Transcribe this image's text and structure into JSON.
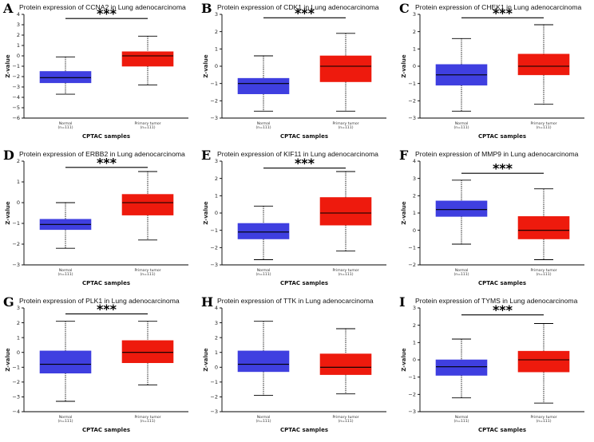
{
  "colors": {
    "normal": "#3f3fe0",
    "tumor": "#ee1a0d"
  },
  "chart_data": [
    {
      "type": "box",
      "letter": "A",
      "title": "Protein expression of CCNA2 in Lung adenocarcinoma",
      "ylabel": "Z-value",
      "xlabel": "CPTAC samples",
      "ylim": [
        -6,
        4
      ],
      "yticks": [
        -6,
        -5,
        -4,
        -3,
        -2,
        -1,
        0,
        1,
        2,
        3,
        4
      ],
      "significance": "***",
      "sig_y": 3.6,
      "groups": [
        {
          "name": "Normal",
          "n": "(n=111)",
          "whisker_low": -3.7,
          "q1": -2.6,
          "median": -2.1,
          "q3": -1.5,
          "whisker_high": -0.1
        },
        {
          "name": "Primary tumor",
          "n": "(n=111)",
          "whisker_low": -2.8,
          "q1": -1.0,
          "median": 0.0,
          "q3": 0.4,
          "whisker_high": 1.9
        }
      ]
    },
    {
      "type": "box",
      "letter": "B",
      "title": "Protein expression of CDK1 in Lung adenocarcinoma",
      "ylabel": "Z-value",
      "xlabel": "CPTAC samples",
      "ylim": [
        -3,
        3
      ],
      "yticks": [
        -3,
        -2,
        -1,
        0,
        1,
        2,
        3
      ],
      "significance": "***",
      "sig_y": 2.8,
      "groups": [
        {
          "name": "Normal",
          "n": "(n=111)",
          "whisker_low": -2.6,
          "q1": -1.6,
          "median": -1.0,
          "q3": -0.7,
          "whisker_high": 0.6
        },
        {
          "name": "Primary tumor",
          "n": "(n=111)",
          "whisker_low": -2.6,
          "q1": -0.9,
          "median": 0.0,
          "q3": 0.6,
          "whisker_high": 1.9
        }
      ]
    },
    {
      "type": "box",
      "letter": "C",
      "title": "Protein expression of CHEK1 in Lung adenocarcinoma",
      "ylabel": "Z-value",
      "xlabel": "CPTAC samples",
      "ylim": [
        -3,
        3
      ],
      "yticks": [
        -3,
        -2,
        -1,
        0,
        1,
        2,
        3
      ],
      "significance": "***",
      "sig_y": 2.8,
      "groups": [
        {
          "name": "Normal",
          "n": "(n=111)",
          "whisker_low": -2.6,
          "q1": -1.1,
          "median": -0.5,
          "q3": 0.1,
          "whisker_high": 1.6
        },
        {
          "name": "Primary tumor",
          "n": "(n=111)",
          "whisker_low": -2.2,
          "q1": -0.5,
          "median": 0.0,
          "q3": 0.7,
          "whisker_high": 2.4
        }
      ]
    },
    {
      "type": "box",
      "letter": "D",
      "title": "Protein expression of ERBB2 in Lung adenocarcinoma",
      "ylabel": "Z-value",
      "xlabel": "CPTAC samples",
      "ylim": [
        -3,
        2
      ],
      "yticks": [
        -3,
        -2,
        -1,
        0,
        1,
        2
      ],
      "significance": "***",
      "sig_y": 1.7,
      "groups": [
        {
          "name": "Normal",
          "n": "(n=111)",
          "whisker_low": -2.2,
          "q1": -1.3,
          "median": -1.05,
          "q3": -0.8,
          "whisker_high": 0.0
        },
        {
          "name": "Primary tumor",
          "n": "(n=111)",
          "whisker_low": -1.8,
          "q1": -0.6,
          "median": 0.0,
          "q3": 0.4,
          "whisker_high": 1.5
        }
      ]
    },
    {
      "type": "box",
      "letter": "E",
      "title": "Protein expression of KIF11 in Lung adenocarcinoma",
      "ylabel": "Z-value",
      "xlabel": "CPTAC samples",
      "ylim": [
        -3,
        3
      ],
      "yticks": [
        -3,
        -2,
        -1,
        0,
        1,
        2,
        3
      ],
      "significance": "***",
      "sig_y": 2.6,
      "groups": [
        {
          "name": "Normal",
          "n": "(n=111)",
          "whisker_low": -2.7,
          "q1": -1.5,
          "median": -1.1,
          "q3": -0.6,
          "whisker_high": 0.4
        },
        {
          "name": "Primary tumor",
          "n": "(n=111)",
          "whisker_low": -2.2,
          "q1": -0.7,
          "median": 0.0,
          "q3": 0.9,
          "whisker_high": 2.4
        }
      ]
    },
    {
      "type": "box",
      "letter": "F",
      "title": "Protein expression of MMP9 in Lung adenocarcinoma",
      "ylabel": "Z-value",
      "xlabel": "CPTAC samples",
      "ylim": [
        -2,
        4
      ],
      "yticks": [
        -2,
        -1,
        0,
        1,
        2,
        3,
        4
      ],
      "significance": "***",
      "sig_y": 3.3,
      "groups": [
        {
          "name": "Normal",
          "n": "(n=111)",
          "whisker_low": -0.8,
          "q1": 0.8,
          "median": 1.2,
          "q3": 1.7,
          "whisker_high": 2.9
        },
        {
          "name": "Primary tumor",
          "n": "(n=111)",
          "whisker_low": -1.7,
          "q1": -0.5,
          "median": 0.0,
          "q3": 0.8,
          "whisker_high": 2.4
        }
      ]
    },
    {
      "type": "box",
      "letter": "G",
      "title": "Protein expression of PLK1 in Lung adenocarcinoma",
      "ylabel": "Z-value",
      "xlabel": "CPTAC samples",
      "ylim": [
        -4,
        3
      ],
      "yticks": [
        -4,
        -3,
        -2,
        -1,
        0,
        1,
        2,
        3
      ],
      "significance": "***",
      "sig_y": 2.6,
      "groups": [
        {
          "name": "Normal",
          "n": "(n=111)",
          "whisker_low": -3.3,
          "q1": -1.4,
          "median": -0.8,
          "q3": 0.1,
          "whisker_high": 2.1
        },
        {
          "name": "Primary tumor",
          "n": "(n=111)",
          "whisker_low": -2.2,
          "q1": -0.7,
          "median": 0.0,
          "q3": 0.8,
          "whisker_high": 2.1
        }
      ]
    },
    {
      "type": "box",
      "letter": "H",
      "title": "Protein expression of TTK in Lung adenocarcinoma",
      "ylabel": "Z-value",
      "xlabel": "CPTAC samples",
      "ylim": [
        -3,
        4
      ],
      "yticks": [
        -3,
        -2,
        -1,
        0,
        1,
        2,
        3,
        4
      ],
      "significance": "",
      "sig_y": null,
      "groups": [
        {
          "name": "Normal",
          "n": "(n=111)",
          "whisker_low": -1.9,
          "q1": -0.3,
          "median": 0.2,
          "q3": 1.1,
          "whisker_high": 3.1
        },
        {
          "name": "Primary tumor",
          "n": "(n=111)",
          "whisker_low": -1.8,
          "q1": -0.5,
          "median": 0.0,
          "q3": 0.9,
          "whisker_high": 2.6
        }
      ]
    },
    {
      "type": "box",
      "letter": "I",
      "title": "Protein expression of TYMS in Lung adenocarcinoma",
      "ylabel": "Z-value",
      "xlabel": "CPTAC samples",
      "ylim": [
        -3,
        3
      ],
      "yticks": [
        -3,
        -2,
        -1,
        0,
        1,
        2,
        3
      ],
      "significance": "***",
      "sig_y": 2.6,
      "groups": [
        {
          "name": "Normal",
          "n": "(n=111)",
          "whisker_low": -2.2,
          "q1": -0.9,
          "median": -0.4,
          "q3": 0.0,
          "whisker_high": 1.2
        },
        {
          "name": "Primary tumor",
          "n": "(n=111)",
          "whisker_low": -2.5,
          "q1": -0.7,
          "median": 0.0,
          "q3": 0.5,
          "whisker_high": 2.1
        }
      ]
    }
  ]
}
